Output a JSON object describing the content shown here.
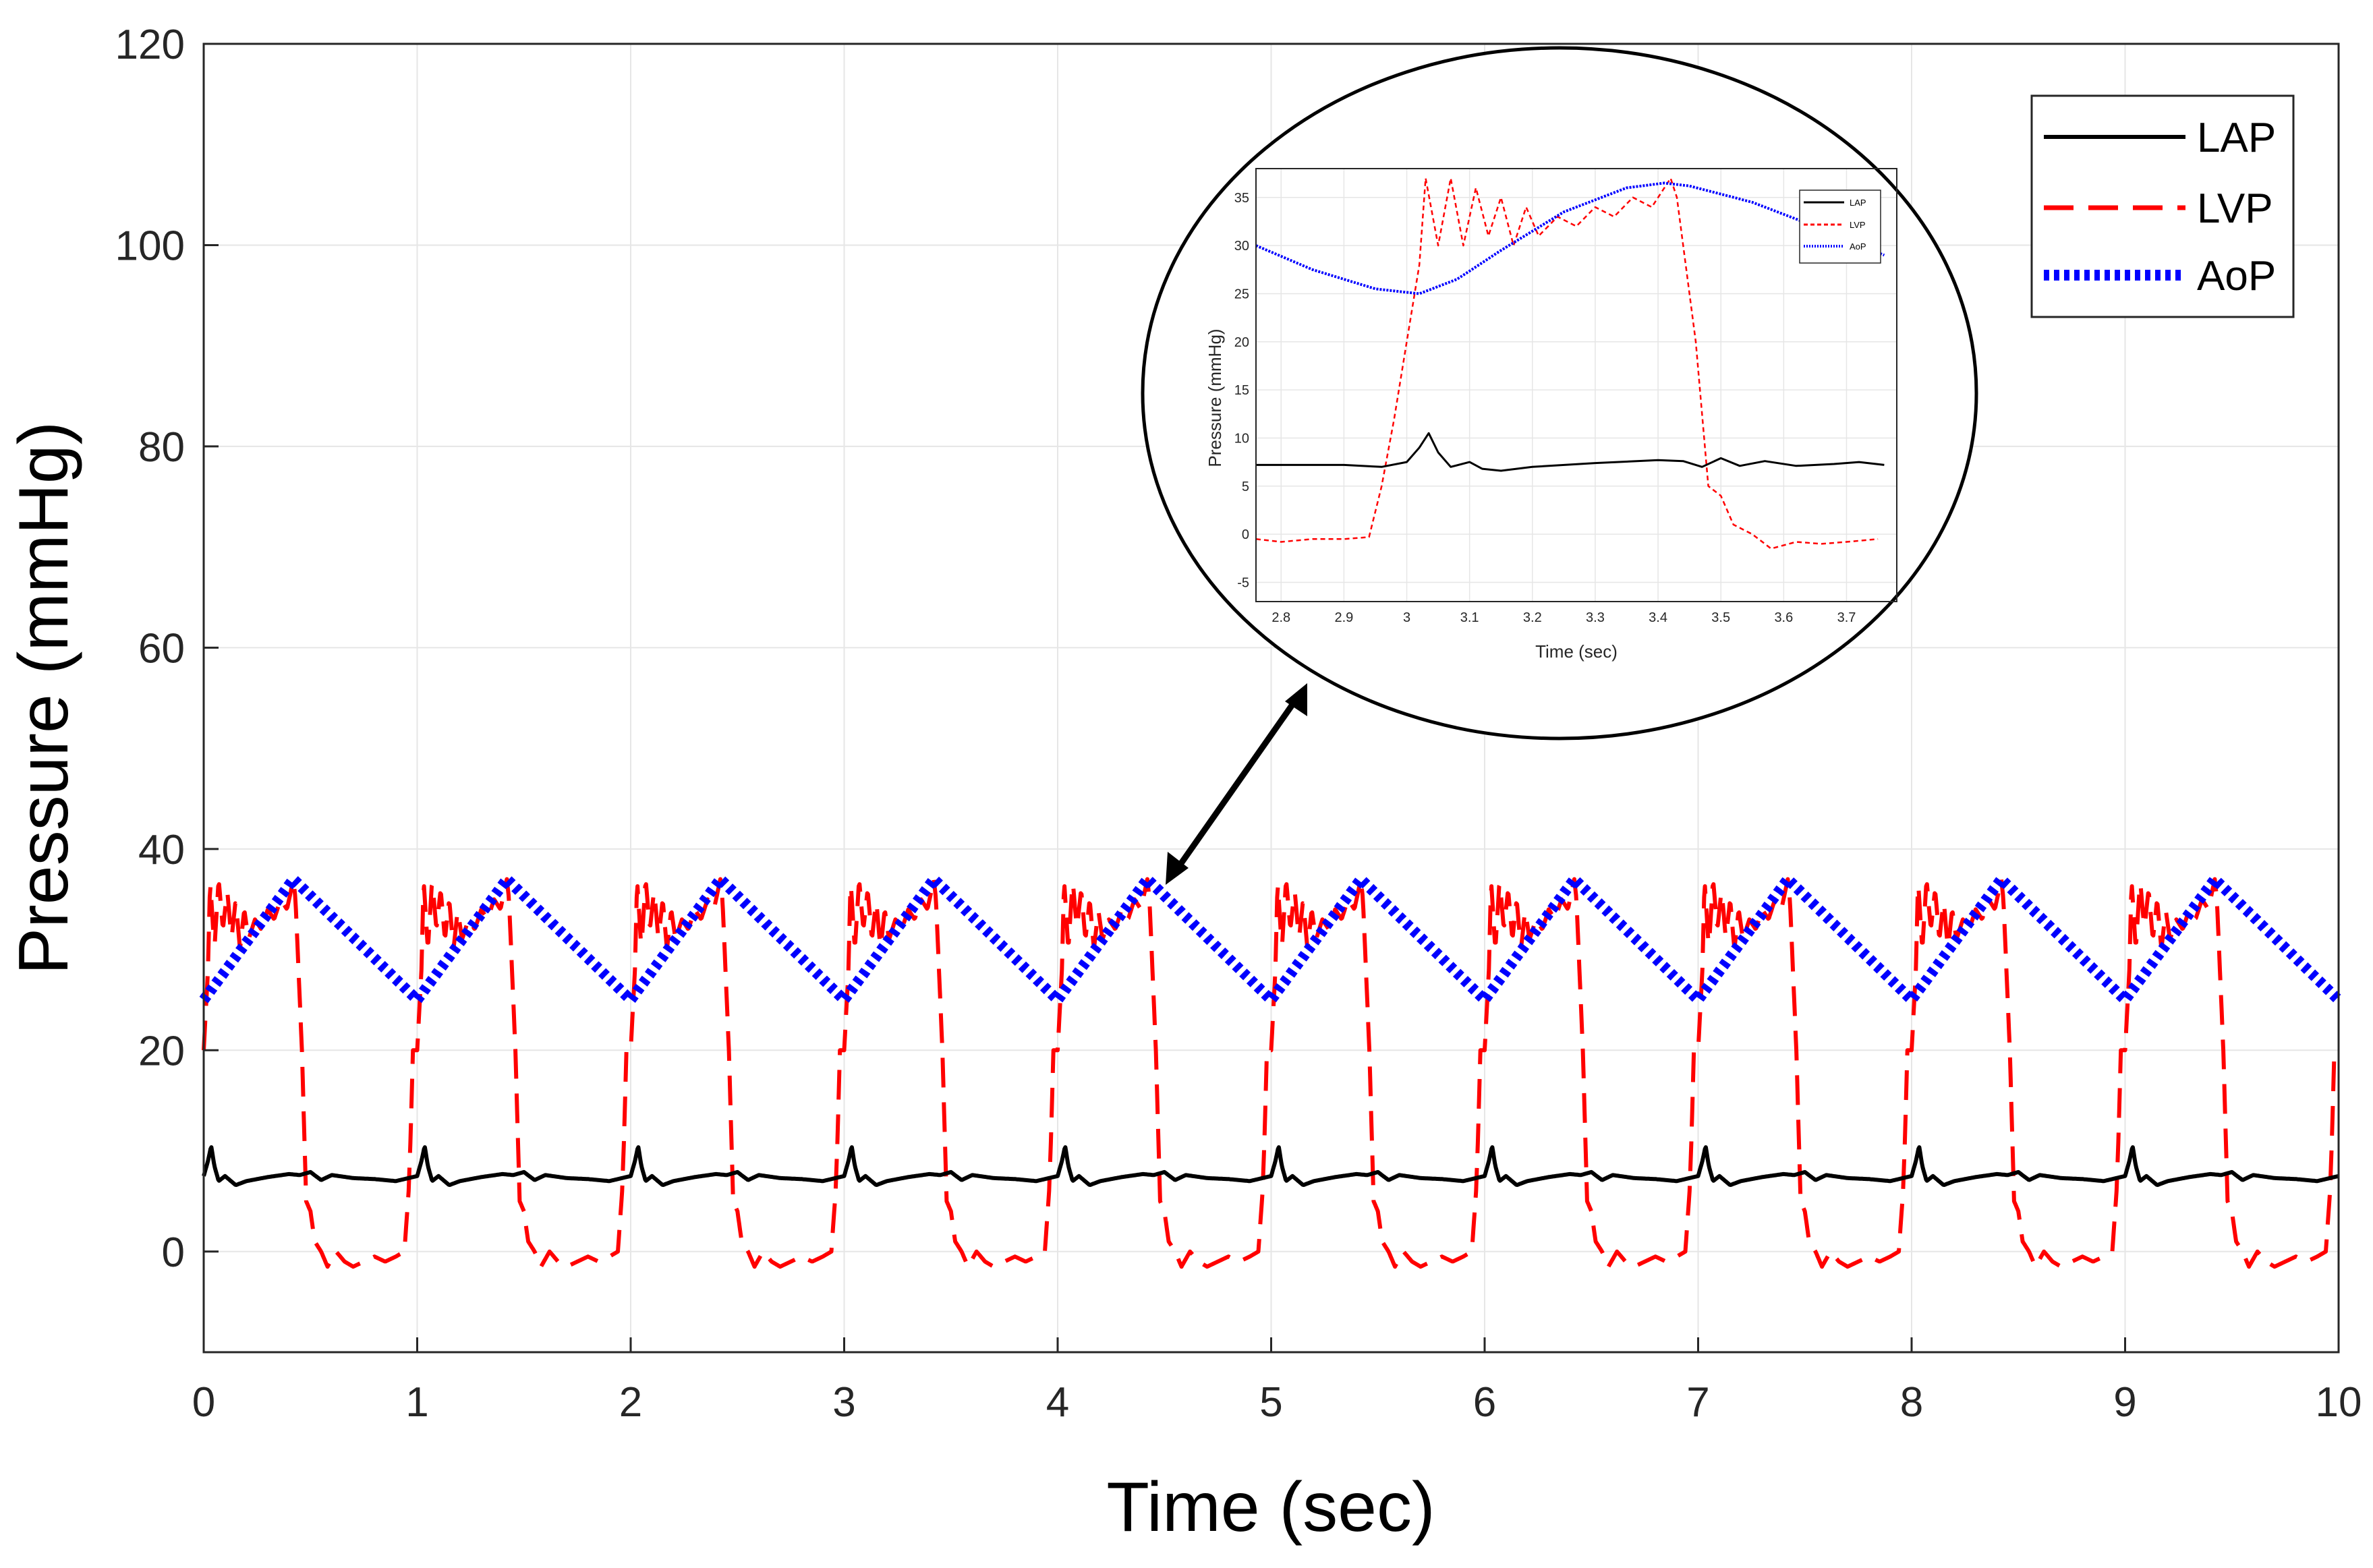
{
  "chart_data": [
    {
      "type": "line",
      "title": "",
      "xlabel": "Time (sec)",
      "ylabel": "Pressure (mmHg)",
      "xlim": [
        0,
        10
      ],
      "ylim": [
        -10,
        120
      ],
      "xticks": [
        0,
        1,
        2,
        3,
        4,
        5,
        6,
        7,
        8,
        9,
        10
      ],
      "yticks": [
        0,
        20,
        40,
        60,
        80,
        100,
        120
      ],
      "grid": true,
      "legend_position": "top-right",
      "cycle_period_sec": 1.0,
      "series": [
        {
          "name": "LAP",
          "style": "solid",
          "color": "#000000",
          "cycle_profile": {
            "t": [
              0.0,
              0.02,
              0.035,
              0.05,
              0.07,
              0.1,
              0.15,
              0.2,
              0.3,
              0.4,
              0.45,
              0.5,
              0.55,
              0.6,
              0.7,
              0.8,
              0.9,
              1.0
            ],
            "p": [
              7.5,
              9.0,
              10.5,
              8.5,
              7.0,
              7.5,
              6.6,
              7.0,
              7.4,
              7.7,
              7.6,
              7.9,
              7.1,
              7.6,
              7.3,
              7.2,
              7.0,
              7.5
            ]
          }
        },
        {
          "name": "LVP",
          "style": "dashed",
          "color": "#ff0000",
          "cycle_profile": {
            "t": [
              0.0,
              0.02,
              0.03,
              0.05,
              0.07,
              0.09,
              0.11,
              0.13,
              0.15,
              0.17,
              0.19,
              0.21,
              0.24,
              0.27,
              0.3,
              0.33,
              0.36,
              0.39,
              0.42,
              0.43,
              0.46,
              0.48,
              0.5,
              0.52,
              0.55,
              0.58,
              0.62,
              0.66,
              0.7,
              0.75,
              0.8,
              0.85,
              0.9,
              0.94,
              0.96,
              0.97,
              0.98,
              1.0
            ],
            "p": [
              20,
              28,
              37,
              30,
              37,
              32,
              36,
              31,
              35,
              30,
              34,
              31,
              33,
              32,
              34,
              33,
              35,
              34,
              37,
              35,
              20,
              5,
              4,
              1,
              0,
              -1.5,
              0,
              -1,
              -1.5,
              -1,
              -0.5,
              -1,
              -0.5,
              0,
              6,
              12,
              20,
              20
            ]
          }
        },
        {
          "name": "AoP",
          "style": "dotted",
          "color": "#0000ff",
          "cycle_profile": {
            "t": [
              0.0,
              0.42,
              1.0
            ],
            "p": [
              25,
              37,
              25
            ]
          }
        }
      ]
    },
    {
      "type": "line",
      "title": "",
      "xlabel": "Time (sec)",
      "ylabel": "Pressure (mmHg)",
      "xlim": [
        2.76,
        3.78
      ],
      "ylim": [
        -7,
        38
      ],
      "xticks": [
        2.8,
        2.9,
        3,
        3.1,
        3.2,
        3.3,
        3.4,
        3.5,
        3.6,
        3.7
      ],
      "yticks": [
        -5,
        0,
        5,
        10,
        15,
        20,
        25,
        30,
        35
      ],
      "grid": true,
      "legend_position": "top-right",
      "series": [
        {
          "name": "LAP",
          "style": "solid",
          "color": "#000000",
          "x": [
            2.76,
            2.9,
            2.96,
            3.0,
            3.02,
            3.035,
            3.05,
            3.07,
            3.1,
            3.12,
            3.15,
            3.2,
            3.3,
            3.4,
            3.44,
            3.47,
            3.5,
            3.53,
            3.57,
            3.62,
            3.68,
            3.72,
            3.76
          ],
          "y": [
            7.2,
            7.2,
            7.0,
            7.5,
            9.0,
            10.5,
            8.5,
            7.0,
            7.5,
            6.8,
            6.6,
            7.0,
            7.4,
            7.7,
            7.6,
            7.0,
            7.9,
            7.1,
            7.6,
            7.1,
            7.3,
            7.5,
            7.2
          ]
        },
        {
          "name": "LVP",
          "style": "dashed",
          "color": "#ff0000",
          "x": [
            2.76,
            2.8,
            2.85,
            2.9,
            2.94,
            2.96,
            2.98,
            3.0,
            3.02,
            3.03,
            3.05,
            3.07,
            3.09,
            3.11,
            3.13,
            3.15,
            3.17,
            3.19,
            3.21,
            3.24,
            3.27,
            3.3,
            3.33,
            3.36,
            3.39,
            3.42,
            3.43,
            3.46,
            3.48,
            3.5,
            3.52,
            3.55,
            3.58,
            3.62,
            3.66,
            3.7,
            3.75
          ],
          "y": [
            -0.5,
            -0.8,
            -0.5,
            -0.5,
            -0.3,
            5,
            12,
            20,
            28,
            37,
            30,
            37,
            30,
            36,
            31,
            35,
            30,
            34,
            31,
            33,
            32,
            34,
            33,
            35,
            34,
            37,
            35,
            20,
            5,
            4,
            1,
            0,
            -1.5,
            -0.8,
            -1,
            -0.8,
            -0.5
          ]
        },
        {
          "name": "AoP",
          "style": "dotted",
          "color": "#0000ff",
          "x": [
            2.76,
            2.85,
            2.95,
            3.02,
            3.08,
            3.15,
            3.25,
            3.35,
            3.41,
            3.45,
            3.55,
            3.65,
            3.76
          ],
          "y": [
            30,
            27.5,
            25.5,
            25.0,
            26.5,
            29.5,
            33.5,
            36.0,
            36.5,
            36.2,
            34.5,
            32.0,
            29.0
          ]
        }
      ]
    }
  ],
  "labels": {
    "main_xlabel": "Time (sec)",
    "main_ylabel": "Pressure (mmHg)",
    "inset_xlabel": "Time (sec)",
    "inset_ylabel": "Pressure (mmHg)"
  },
  "legend": [
    "LAP",
    "LVP",
    "AoP"
  ]
}
